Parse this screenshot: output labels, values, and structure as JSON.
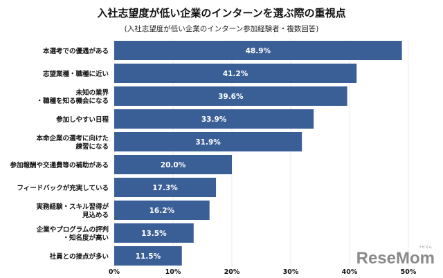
{
  "chart_data": {
    "type": "bar",
    "orientation": "horizontal",
    "title": "入社志望度が低い企業のインターンを選ぶ際の重視点",
    "subtitle": "(入社志望度が低い企業のインターン参加経験者・複数回答)",
    "categories": [
      [
        "本選考での優遇がある"
      ],
      [
        "志望業種・職種に近い"
      ],
      [
        "未知の業界",
        "・職種を知る機会になる"
      ],
      [
        "参加しやすい日程"
      ],
      [
        "本命企業の選考に向けた",
        "練習になる"
      ],
      [
        "参加報酬や交通費等の補助がある"
      ],
      [
        "フィードバックが充実している"
      ],
      [
        "実務経験・スキル習得が",
        "見込める"
      ],
      [
        "企業やプログラムの評判",
        "・知名度が高い"
      ],
      [
        "社員との接点が多い"
      ]
    ],
    "values": [
      48.9,
      41.2,
      39.6,
      33.9,
      31.9,
      20.0,
      17.3,
      16.2,
      13.5,
      11.5
    ],
    "value_labels": [
      "48.9%",
      "41.2%",
      "39.6%",
      "33.9%",
      "31.9%",
      "20.0%",
      "17.3%",
      "16.2%",
      "13.5%",
      "11.5%"
    ],
    "xlim": [
      0,
      50
    ],
    "xticks": [
      "0%",
      "10%",
      "20%",
      "30%",
      "40%",
      "50%"
    ],
    "xtick_values": [
      0,
      10,
      20,
      30,
      40,
      50
    ],
    "grid": true,
    "bar_color": "#3a5f97"
  },
  "watermark": {
    "text": "ReseMom",
    "kana": "リセマム"
  }
}
